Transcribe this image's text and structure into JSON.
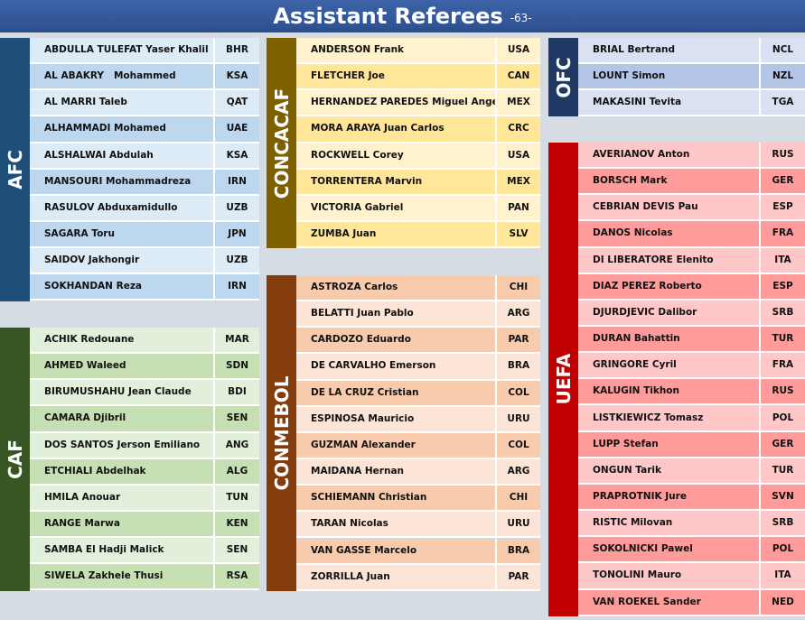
{
  "header": {
    "title": "Assistant Referees",
    "page": "-63-"
  },
  "sections": [
    {
      "name": "AFC",
      "rows": [
        [
          "ABDULLA TULEFAT Yaser Khalil",
          "BHR"
        ],
        [
          "AL ABAKRY   Mohammed",
          "KSA"
        ],
        [
          "AL MARRI Taleb",
          "QAT"
        ],
        [
          "ALHAMMADI Mohamed",
          "UAE"
        ],
        [
          "ALSHALWAI Abdulah",
          "KSA"
        ],
        [
          "MANSOURI Mohammadreza",
          "IRN"
        ],
        [
          "RASULOV Abduxamidullo",
          "UZB"
        ],
        [
          "SAGARA Toru",
          "JPN"
        ],
        [
          "SAIDOV Jakhongir",
          "UZB"
        ],
        [
          "SOKHANDAN Reza",
          "IRN"
        ]
      ]
    },
    {
      "name": "CAF",
      "rows": [
        [
          "ACHIK Redouane",
          "MAR"
        ],
        [
          "AHMED Waleed",
          "SDN"
        ],
        [
          "BIRUMUSHAHU Jean Claude",
          "BDI"
        ],
        [
          "CAMARA Djibril",
          "SEN"
        ],
        [
          "DOS SANTOS Jerson Emiliano",
          "ANG"
        ],
        [
          "ETCHIALI Abdelhak",
          "ALG"
        ],
        [
          "HMILA Anouar",
          "TUN"
        ],
        [
          "RANGE Marwa",
          "KEN"
        ],
        [
          "SAMBA El Hadji Malick",
          "SEN"
        ],
        [
          "SIWELA Zakhele Thusi",
          "RSA"
        ]
      ]
    },
    {
      "name": "CONCACAF",
      "rows": [
        [
          "ANDERSON Frank",
          "USA"
        ],
        [
          "FLETCHER Joe",
          "CAN"
        ],
        [
          "HERNANDEZ PAREDES Miguel Angel",
          "MEX"
        ],
        [
          "MORA ARAYA Juan Carlos",
          "CRC"
        ],
        [
          "ROCKWELL Corey",
          "USA"
        ],
        [
          "TORRENTERA Marvin",
          "MEX"
        ],
        [
          "VICTORIA Gabriel",
          "PAN"
        ],
        [
          "ZUMBA Juan",
          "SLV"
        ]
      ]
    },
    {
      "name": "CONMEBOL",
      "rows": [
        [
          "ASTROZA Carlos",
          "CHI"
        ],
        [
          "BELATTI Juan Pablo",
          "ARG"
        ],
        [
          "CARDOZO Eduardo",
          "PAR"
        ],
        [
          "DE CARVALHO Emerson",
          "BRA"
        ],
        [
          "DE LA CRUZ Cristian",
          "COL"
        ],
        [
          "ESPINOSA Mauricio",
          "URU"
        ],
        [
          "GUZMAN Alexander",
          "COL"
        ],
        [
          "MAIDANA Hernan",
          "ARG"
        ],
        [
          "SCHIEMANN Christian",
          "CHI"
        ],
        [
          "TARAN Nicolas",
          "URU"
        ],
        [
          "VAN GASSE Marcelo",
          "BRA"
        ],
        [
          "ZORRILLA Juan",
          "PAR"
        ]
      ]
    },
    {
      "name": "OFC",
      "rows": [
        [
          "BRIAL Bertrand",
          "NCL"
        ],
        [
          "LOUNT Simon",
          "NZL"
        ],
        [
          "MAKASINI Tevita",
          "TGA"
        ]
      ]
    },
    {
      "name": "UEFA",
      "rows": [
        [
          "AVERIANOV Anton",
          "RUS"
        ],
        [
          "BORSCH Mark",
          "GER"
        ],
        [
          "CEBRIAN DEVIS Pau",
          "ESP"
        ],
        [
          "DANOS Nicolas",
          "FRA"
        ],
        [
          "DI LIBERATORE Elenito",
          "ITA"
        ],
        [
          "DIAZ PEREZ Roberto",
          "ESP"
        ],
        [
          "DJURDJEVIC Dalibor",
          "SRB"
        ],
        [
          "DURAN Bahattin",
          "TUR"
        ],
        [
          "GRINGORE Cyril",
          "FRA"
        ],
        [
          "KALUGIN Tikhon",
          "RUS"
        ],
        [
          "LISTKIEWICZ Tomasz",
          "POL"
        ],
        [
          "LUPP Stefan",
          "GER"
        ],
        [
          "ONGUN Tarik",
          "TUR"
        ],
        [
          "PRAPROTNIK Jure",
          "SVN"
        ],
        [
          "RISTIC Milovan",
          "SRB"
        ],
        [
          "SOKOLNICKI Pawel",
          "POL"
        ],
        [
          "TONOLINI Mauro",
          "ITA"
        ],
        [
          "VAN ROEKEL Sander",
          "NED"
        ]
      ]
    }
  ]
}
